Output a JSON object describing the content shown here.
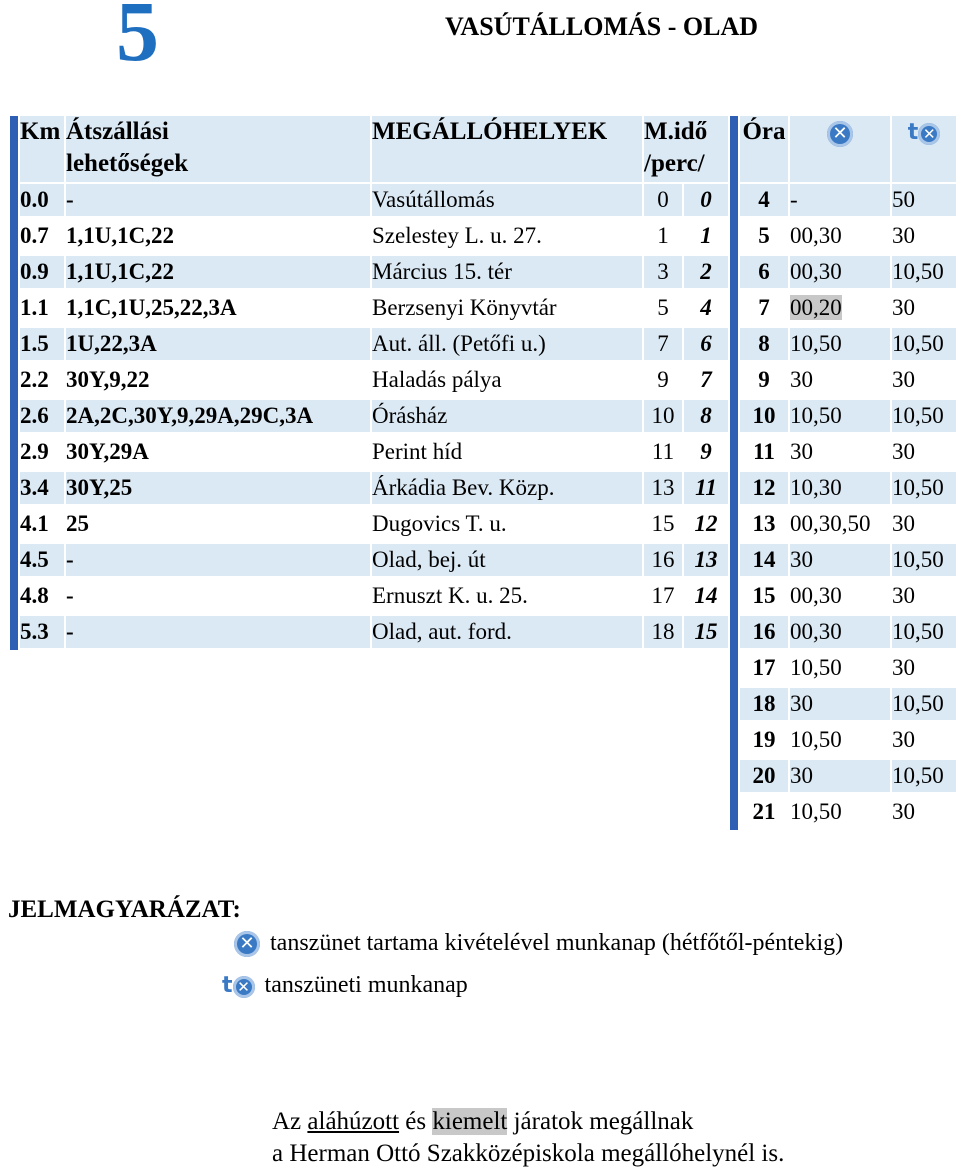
{
  "route_number": "5",
  "title": "VASÚTÁLLOMÁS - OLAD",
  "header": {
    "km": "Km",
    "transfers_line1": "Átszállási",
    "transfers_line2": "lehetőségek",
    "stops": "MEGÁLLÓHELYEK",
    "time_line1": "M.idő",
    "time_line2": "/perc/",
    "hour": "Óra",
    "col1_icon": "school-workday-icon",
    "col2_icon": "holiday-workday-icon"
  },
  "stops": [
    {
      "km": "0.0",
      "transfers": "-",
      "name": "Vasútállomás",
      "t1": "0",
      "t2": "0"
    },
    {
      "km": "0.7",
      "transfers": "1,1U,1C,22",
      "name": "Szelestey L. u. 27.",
      "t1": "1",
      "t2": "1"
    },
    {
      "km": "0.9",
      "transfers": "1,1U,1C,22",
      "name": "Március 15. tér",
      "t1": "3",
      "t2": "2"
    },
    {
      "km": "1.1",
      "transfers": "1,1C,1U,25,22,3A",
      "name": "Berzsenyi Könyvtár",
      "t1": "5",
      "t2": "4"
    },
    {
      "km": "1.5",
      "transfers": "1U,22,3A",
      "name": "Aut. áll. (Petőfi u.)",
      "t1": "7",
      "t2": "6"
    },
    {
      "km": "2.2",
      "transfers": "30Y,9,22",
      "name": "Haladás pálya",
      "t1": "9",
      "t2": "7"
    },
    {
      "km": "2.6",
      "transfers": "2A,2C,30Y,9,29A,29C,3A",
      "name": "Órásház",
      "t1": "10",
      "t2": "8"
    },
    {
      "km": "2.9",
      "transfers": "30Y,29A",
      "name": "Perint híd",
      "t1": "11",
      "t2": "9"
    },
    {
      "km": "3.4",
      "transfers": "30Y,25",
      "name": "Árkádia Bev. Közp.",
      "t1": "13",
      "t2": "11"
    },
    {
      "km": "4.1",
      "transfers": "25",
      "name": "Dugovics T. u.",
      "t1": "15",
      "t2": "12"
    },
    {
      "km": "4.5",
      "transfers": "-",
      "name": "Olad, bej. út",
      "t1": "16",
      "t2": "13"
    },
    {
      "km": "4.8",
      "transfers": "-",
      "name": "Ernuszt K. u. 25.",
      "t1": "17",
      "t2": "14"
    },
    {
      "km": "5.3",
      "transfers": "-",
      "name": "Olad, aut. ford.",
      "t1": "18",
      "t2": "15"
    }
  ],
  "schedule": [
    {
      "hour": "4",
      "c1": "-",
      "c2": "50"
    },
    {
      "hour": "5",
      "c1": "00,30",
      "c2": "30"
    },
    {
      "hour": "6",
      "c1": "00,30",
      "c2": "10,50"
    },
    {
      "hour": "7",
      "c1": "00,20",
      "c2": "30"
    },
    {
      "hour": "8",
      "c1": "10,50",
      "c2": "10,50"
    },
    {
      "hour": "9",
      "c1": "30",
      "c2": "30"
    },
    {
      "hour": "10",
      "c1": "10,50",
      "c2": "10,50"
    },
    {
      "hour": "11",
      "c1": "30",
      "c2": "30"
    },
    {
      "hour": "12",
      "c1": "10,30",
      "c2": "10,50"
    },
    {
      "hour": "13",
      "c1": "00,30,50",
      "c2": "30"
    },
    {
      "hour": "14",
      "c1": "30",
      "c2": "10,50"
    },
    {
      "hour": "15",
      "c1": "00,30",
      "c2": "30"
    },
    {
      "hour": "16",
      "c1": "00,30",
      "c2": "10,50"
    },
    {
      "hour": "17",
      "c1": "10,50",
      "c2": "30"
    },
    {
      "hour": "18",
      "c1": "30",
      "c2": "10,50"
    },
    {
      "hour": "19",
      "c1": "10,50",
      "c2": "30"
    },
    {
      "hour": "20",
      "c1": "30",
      "c2": "10,50"
    },
    {
      "hour": "21",
      "c1": "10,50",
      "c2": "30"
    }
  ],
  "legend": {
    "title": "JELMAGYARÁZAT:",
    "item1": "tanszünet tartama kivételével munkanap (hétfőtől-péntekig)",
    "item2": "tanszüneti munkanap"
  },
  "note": {
    "part1": "Az ",
    "underlined": "aláhúzott",
    "part2": " és ",
    "highlighted": "kiemelt",
    "part3": " járatok megállnak",
    "line2": "a Herman Ottó Szakközépiskola megállóhelynél is."
  },
  "colors": {
    "accent": "#1f6fc0",
    "bar": "#2e5fb5",
    "row_bg": "#dbe9f4",
    "highlight": "#c8c8c8"
  }
}
